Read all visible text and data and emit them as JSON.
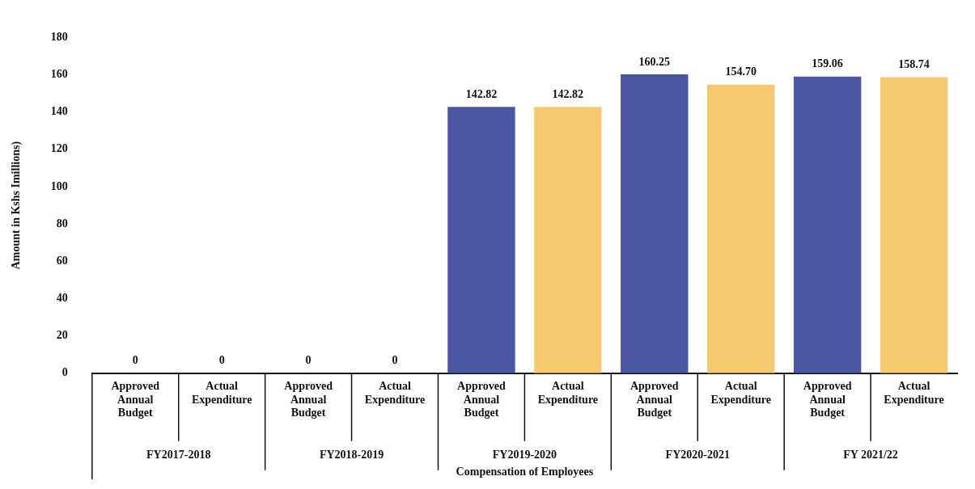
{
  "chart_data": {
    "type": "bar",
    "ylabel": "Amount in Kshs Imillions)",
    "xlabel": "Compensation of Employees",
    "categories": [
      "Approved Annual Budget",
      "Actual Expenditure",
      "Approved Annual Budget",
      "Actual Expenditure",
      "Approved Annual Budget",
      "Actual Expenditure",
      "Approved Annual Budget",
      "Actual Expenditure",
      "Approved Annual Budget",
      "Actual Expenditure"
    ],
    "values": [
      0,
      0,
      0,
      0,
      142.82,
      142.82,
      160.25,
      154.7,
      159.06,
      158.74
    ],
    "colors": [
      "#4a56a2",
      "#f6c970",
      "#4a56a2",
      "#f6c970",
      "#4a56a2",
      "#f6c970",
      "#4a56a2",
      "#f6c970",
      "#4a56a2",
      "#f6c970"
    ],
    "value_labels": [
      "0",
      "0",
      "0",
      "0",
      "142.82",
      "142.82",
      "160.25",
      "154.70",
      "159.06",
      "158.74"
    ],
    "annotations": [
      "FY2017-2018",
      "FY2018-2019",
      "FY2019-2020",
      "FY2020-2021",
      "FY 2021/22"
    ],
    "ylim": [
      0,
      180
    ],
    "yticks": [
      0,
      20,
      40,
      60,
      80,
      100,
      120,
      140,
      160,
      180
    ],
    "grid": false
  }
}
